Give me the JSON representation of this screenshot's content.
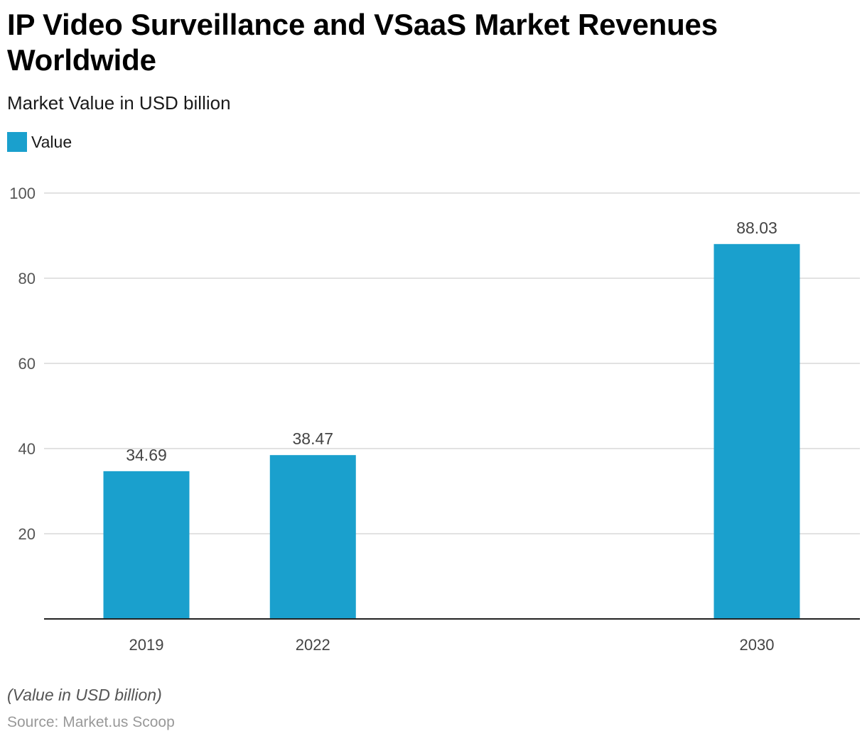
{
  "title": "IP Video Surveillance and VSaaS Market Revenues Worldwide",
  "subtitle": "Market Value in USD billion",
  "legend": {
    "label": "Value",
    "color": "#1aa0cd"
  },
  "note": "(Value in USD billion)",
  "source": "Source: Market.us Scoop",
  "chart_data": {
    "type": "bar",
    "categories": [
      "2019",
      "2022",
      "2030"
    ],
    "x_positions": [
      2019,
      2022,
      2030
    ],
    "series": [
      {
        "name": "Value",
        "values": [
          34.69,
          38.47,
          88.03
        ],
        "color": "#1aa0cd"
      }
    ],
    "ylim": [
      0,
      100
    ],
    "yticks": [
      20,
      40,
      60,
      80,
      100
    ],
    "ytick_labels": [
      "20",
      "40",
      "60",
      "80",
      "100"
    ],
    "data_labels": [
      "34.69",
      "38.47",
      "88.03"
    ],
    "grid": true,
    "legend_position": "top-left"
  }
}
